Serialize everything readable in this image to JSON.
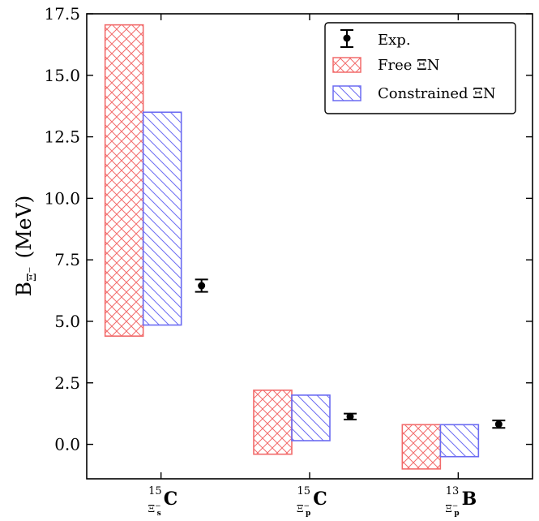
{
  "chart_data": {
    "type": "bar",
    "ylabel_main": "B",
    "ylabel_sub": "Ξ⁻",
    "ylabel_unit": "(MeV)",
    "ylim": [
      -1.4,
      17.5
    ],
    "yticks": [
      "0.0",
      "2.5",
      "5.0",
      "7.5",
      "10.0",
      "12.5",
      "15.0",
      "17.5"
    ],
    "ytick_values": [
      0,
      2.5,
      5,
      7.5,
      10,
      12.5,
      15,
      17.5
    ],
    "categories": [
      {
        "mass": "15",
        "sub": "Ξ",
        "sup": "−",
        "subsub": "s",
        "element": "C"
      },
      {
        "mass": "15",
        "sub": "Ξ",
        "sup": "−",
        "subsub": "p",
        "element": "C"
      },
      {
        "mass": "13",
        "sub": "Ξ",
        "sup": "−",
        "subsub": "p",
        "element": "B"
      }
    ],
    "series": [
      {
        "name": "Free ΞN",
        "color": "#f26b6b",
        "hatch": "cross",
        "ranges": [
          [
            4.4,
            17.05
          ],
          [
            -0.4,
            2.2
          ],
          [
            -1.0,
            0.8
          ]
        ]
      },
      {
        "name": "Constrained ΞN",
        "color": "#6b6bf2",
        "hatch": "diagonal",
        "ranges": [
          [
            4.85,
            13.5
          ],
          [
            0.15,
            2.0
          ],
          [
            -0.5,
            0.8
          ]
        ]
      }
    ],
    "experiment": {
      "name": "Exp.",
      "values": [
        6.45,
        1.13,
        0.82
      ],
      "errors": [
        0.25,
        0.12,
        0.15
      ]
    },
    "legend_position": "top-right",
    "grid": false
  }
}
